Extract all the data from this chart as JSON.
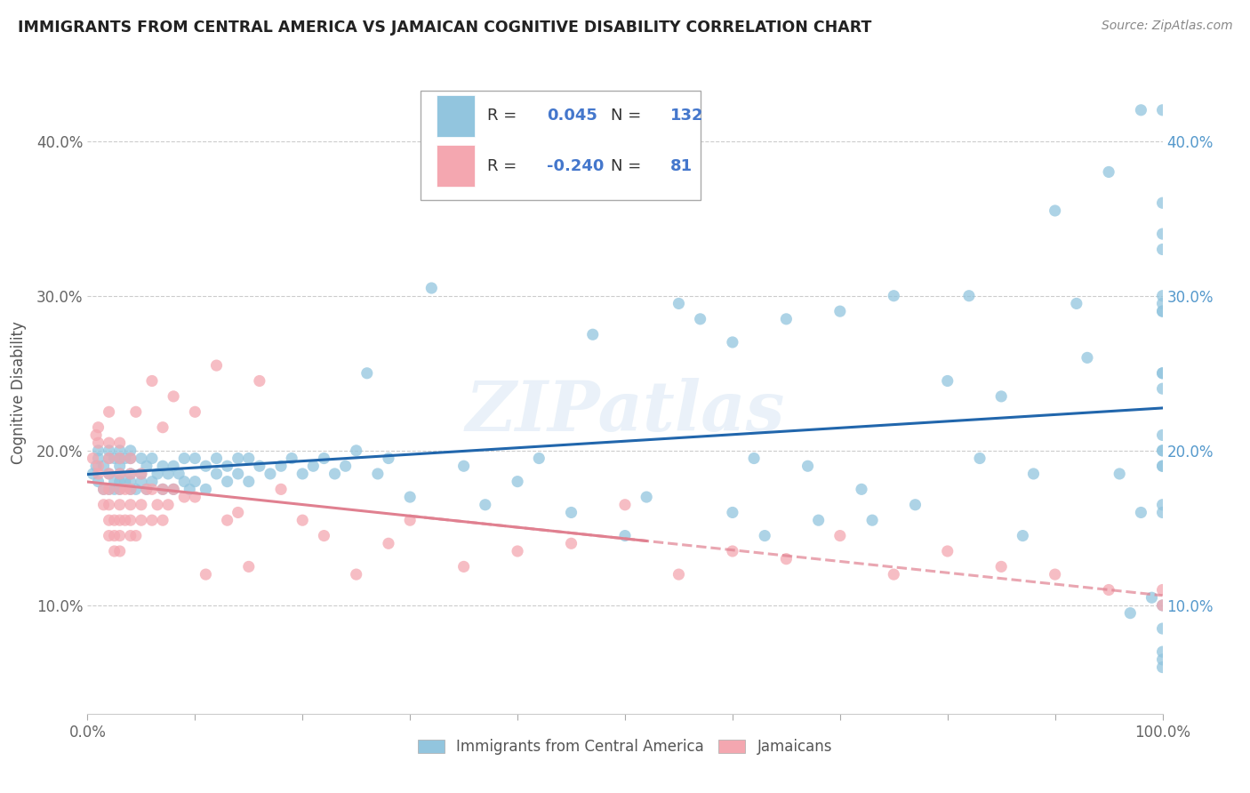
{
  "title": "IMMIGRANTS FROM CENTRAL AMERICA VS JAMAICAN COGNITIVE DISABILITY CORRELATION CHART",
  "source": "Source: ZipAtlas.com",
  "ylabel": "Cognitive Disability",
  "yticks": [
    0.1,
    0.2,
    0.3,
    0.4
  ],
  "ytick_labels": [
    "10.0%",
    "20.0%",
    "30.0%",
    "40.0%"
  ],
  "xlim": [
    0.0,
    1.0
  ],
  "ylim": [
    0.03,
    0.445
  ],
  "blue_R": 0.045,
  "blue_N": 132,
  "pink_R": -0.24,
  "pink_N": 81,
  "blue_color": "#92c5de",
  "pink_color": "#f4a7b0",
  "trendline_blue": "#2166ac",
  "trendline_pink": "#e08090",
  "watermark": "ZIPatlas",
  "blue_scatter_x": [
    0.005,
    0.008,
    0.01,
    0.01,
    0.01,
    0.015,
    0.015,
    0.02,
    0.02,
    0.02,
    0.02,
    0.025,
    0.025,
    0.025,
    0.03,
    0.03,
    0.03,
    0.03,
    0.03,
    0.03,
    0.035,
    0.035,
    0.04,
    0.04,
    0.04,
    0.04,
    0.04,
    0.045,
    0.05,
    0.05,
    0.05,
    0.055,
    0.055,
    0.06,
    0.06,
    0.065,
    0.07,
    0.07,
    0.075,
    0.08,
    0.08,
    0.085,
    0.09,
    0.09,
    0.095,
    0.1,
    0.1,
    0.11,
    0.11,
    0.12,
    0.12,
    0.13,
    0.13,
    0.14,
    0.14,
    0.15,
    0.15,
    0.16,
    0.17,
    0.18,
    0.19,
    0.2,
    0.21,
    0.22,
    0.23,
    0.24,
    0.25,
    0.26,
    0.27,
    0.28,
    0.3,
    0.32,
    0.35,
    0.37,
    0.4,
    0.42,
    0.45,
    0.47,
    0.5,
    0.52,
    0.55,
    0.57,
    0.6,
    0.6,
    0.62,
    0.63,
    0.65,
    0.67,
    0.68,
    0.7,
    0.72,
    0.73,
    0.75,
    0.77,
    0.8,
    0.82,
    0.83,
    0.85,
    0.87,
    0.88,
    0.9,
    0.92,
    0.93,
    0.95,
    0.96,
    0.97,
    0.98,
    0.98,
    0.99,
    1.0,
    1.0,
    1.0,
    1.0,
    1.0,
    1.0,
    1.0,
    1.0,
    1.0,
    1.0,
    1.0,
    1.0,
    1.0,
    1.0,
    1.0,
    1.0,
    1.0,
    1.0,
    1.0,
    1.0,
    1.0,
    1.0,
    1.0
  ],
  "blue_scatter_y": [
    0.185,
    0.19,
    0.18,
    0.2,
    0.195,
    0.175,
    0.19,
    0.185,
    0.195,
    0.175,
    0.2,
    0.18,
    0.195,
    0.175,
    0.18,
    0.175,
    0.19,
    0.195,
    0.185,
    0.2,
    0.18,
    0.195,
    0.175,
    0.18,
    0.185,
    0.195,
    0.2,
    0.175,
    0.18,
    0.185,
    0.195,
    0.175,
    0.19,
    0.18,
    0.195,
    0.185,
    0.175,
    0.19,
    0.185,
    0.175,
    0.19,
    0.185,
    0.18,
    0.195,
    0.175,
    0.18,
    0.195,
    0.175,
    0.19,
    0.185,
    0.195,
    0.18,
    0.19,
    0.185,
    0.195,
    0.18,
    0.195,
    0.19,
    0.185,
    0.19,
    0.195,
    0.185,
    0.19,
    0.195,
    0.185,
    0.19,
    0.2,
    0.25,
    0.185,
    0.195,
    0.17,
    0.305,
    0.19,
    0.165,
    0.18,
    0.195,
    0.16,
    0.275,
    0.145,
    0.17,
    0.295,
    0.285,
    0.16,
    0.27,
    0.195,
    0.145,
    0.285,
    0.19,
    0.155,
    0.29,
    0.175,
    0.155,
    0.3,
    0.165,
    0.245,
    0.3,
    0.195,
    0.235,
    0.145,
    0.185,
    0.355,
    0.295,
    0.26,
    0.38,
    0.185,
    0.095,
    0.16,
    0.42,
    0.105,
    0.295,
    0.2,
    0.33,
    0.065,
    0.25,
    0.085,
    0.165,
    0.21,
    0.19,
    0.06,
    0.16,
    0.3,
    0.24,
    0.36,
    0.29,
    0.19,
    0.42,
    0.1,
    0.29,
    0.2,
    0.34,
    0.07,
    0.25
  ],
  "pink_scatter_x": [
    0.005,
    0.008,
    0.01,
    0.01,
    0.01,
    0.01,
    0.015,
    0.015,
    0.02,
    0.02,
    0.02,
    0.02,
    0.02,
    0.02,
    0.02,
    0.02,
    0.025,
    0.025,
    0.025,
    0.03,
    0.03,
    0.03,
    0.03,
    0.03,
    0.03,
    0.03,
    0.03,
    0.035,
    0.035,
    0.04,
    0.04,
    0.04,
    0.04,
    0.04,
    0.04,
    0.045,
    0.045,
    0.05,
    0.05,
    0.05,
    0.055,
    0.06,
    0.06,
    0.06,
    0.065,
    0.07,
    0.07,
    0.07,
    0.075,
    0.08,
    0.08,
    0.09,
    0.1,
    0.1,
    0.11,
    0.12,
    0.13,
    0.14,
    0.15,
    0.16,
    0.18,
    0.2,
    0.22,
    0.25,
    0.28,
    0.3,
    0.35,
    0.4,
    0.45,
    0.5,
    0.55,
    0.6,
    0.65,
    0.7,
    0.75,
    0.8,
    0.85,
    0.9,
    0.95,
    1.0,
    1.0
  ],
  "pink_scatter_y": [
    0.195,
    0.21,
    0.19,
    0.205,
    0.215,
    0.185,
    0.165,
    0.175,
    0.145,
    0.155,
    0.165,
    0.175,
    0.185,
    0.195,
    0.205,
    0.225,
    0.135,
    0.145,
    0.155,
    0.135,
    0.145,
    0.155,
    0.165,
    0.175,
    0.185,
    0.195,
    0.205,
    0.155,
    0.175,
    0.145,
    0.155,
    0.165,
    0.175,
    0.185,
    0.195,
    0.145,
    0.225,
    0.155,
    0.165,
    0.185,
    0.175,
    0.155,
    0.175,
    0.245,
    0.165,
    0.155,
    0.175,
    0.215,
    0.165,
    0.175,
    0.235,
    0.17,
    0.17,
    0.225,
    0.12,
    0.255,
    0.155,
    0.16,
    0.125,
    0.245,
    0.175,
    0.155,
    0.145,
    0.12,
    0.14,
    0.155,
    0.125,
    0.135,
    0.14,
    0.165,
    0.12,
    0.135,
    0.13,
    0.145,
    0.12,
    0.135,
    0.125,
    0.12,
    0.11,
    0.1,
    0.11
  ]
}
